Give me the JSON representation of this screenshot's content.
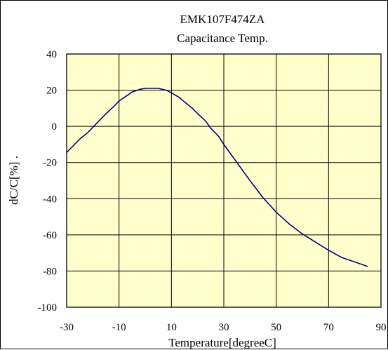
{
  "chart_data": {
    "type": "line",
    "title": "EMK107F474ZA",
    "subtitle": "Capacitance Temp.",
    "xlabel": "Temperature[degreeC]",
    "ylabel": "dC/C[%] .",
    "xlim": [
      -30,
      90
    ],
    "ylim": [
      -100,
      40
    ],
    "xticks": [
      -30,
      -10,
      10,
      30,
      50,
      70,
      90
    ],
    "yticks": [
      -100,
      -80,
      -60,
      -40,
      -20,
      0,
      20,
      40
    ],
    "grid": true,
    "colors": {
      "plot_background": "#ffffcc",
      "line": "#000080",
      "grid": "#000000"
    },
    "series": [
      {
        "x": [
          -30,
          -27,
          -25,
          -22,
          -20,
          -17,
          -15,
          -12,
          -10,
          -7,
          -5,
          -2,
          0,
          3,
          5,
          8,
          10,
          13,
          15,
          18,
          20,
          23,
          25,
          28,
          30,
          33,
          35,
          40,
          45,
          50,
          55,
          60,
          65,
          70,
          75,
          80,
          85
        ],
        "y": [
          -14.5,
          -10,
          -7,
          -3.5,
          -0.5,
          4,
          7,
          11,
          14,
          17,
          19,
          20.5,
          21,
          21,
          21,
          20,
          18.5,
          16,
          13.5,
          10,
          7,
          3,
          -1,
          -5.5,
          -10,
          -16,
          -20,
          -30,
          -39.5,
          -47.5,
          -54,
          -59.5,
          -64,
          -68.5,
          -72.5,
          -75,
          -77.5
        ]
      }
    ]
  }
}
